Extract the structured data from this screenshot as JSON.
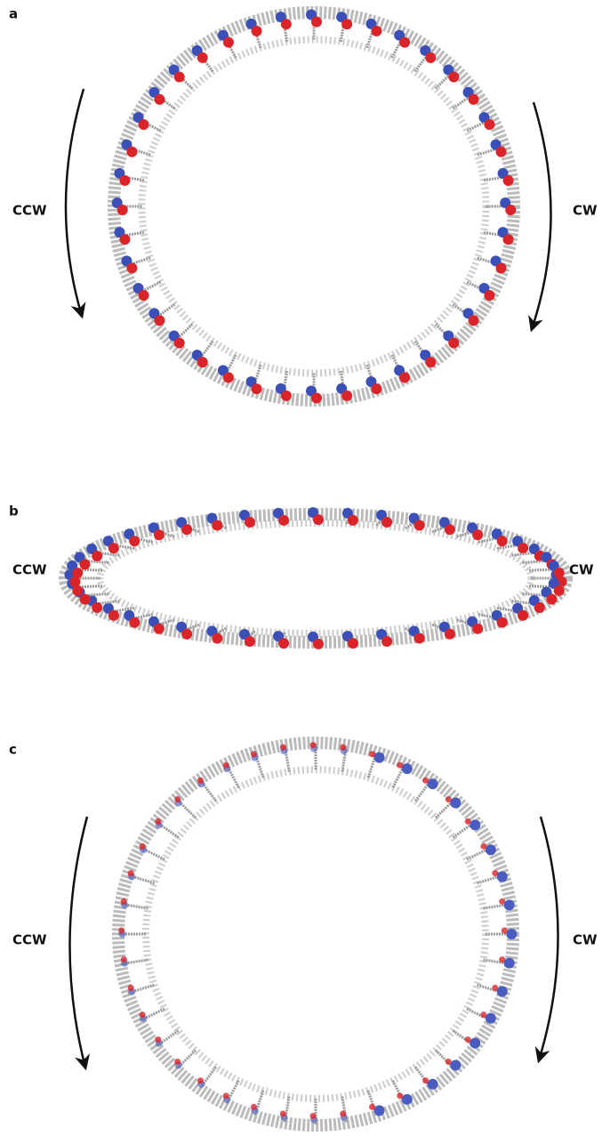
{
  "panels": [
    {
      "label": "a",
      "left": "CCW",
      "right": "CW"
    },
    {
      "label": "b",
      "left": "CCW",
      "right": "CW"
    },
    {
      "label": "c",
      "left": "CCW",
      "right": "CW"
    }
  ]
}
